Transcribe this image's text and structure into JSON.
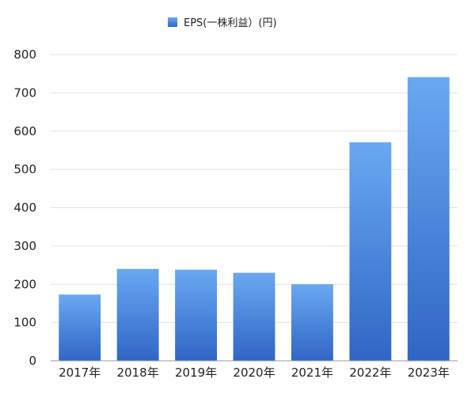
{
  "chart_data": {
    "type": "bar",
    "title": "",
    "xlabel": "",
    "ylabel": "",
    "categories": [
      "2017年",
      "2018年",
      "2019年",
      "2020年",
      "2021年",
      "2022年",
      "2023年"
    ],
    "series": [
      {
        "name": "EPS(一株利益）(円)",
        "values": [
          173,
          240,
          238,
          230,
          200,
          571,
          741
        ]
      }
    ],
    "ylim": [
      0,
      800
    ],
    "yticks": [
      0,
      100,
      200,
      300,
      400,
      500,
      600,
      700,
      800
    ],
    "grid": true,
    "legend_position": "top-center",
    "colors": {
      "bar_top": "#6aa8f2",
      "bar_bottom": "#2f66c4",
      "legend_swatch": "#3f7fd8"
    }
  }
}
